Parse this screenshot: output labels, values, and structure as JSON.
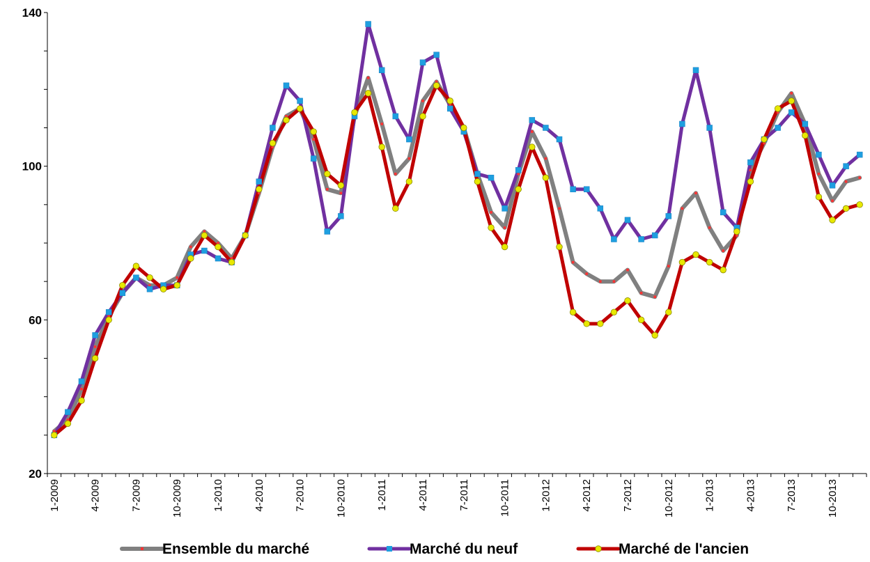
{
  "chart_data": {
    "type": "line",
    "title": "",
    "xlabel": "",
    "ylabel": "",
    "ylim": [
      20,
      140
    ],
    "yticks": [
      20,
      60,
      100,
      140
    ],
    "grid": false,
    "legend_position": "bottom",
    "x_tick_labels": [
      "1-2009",
      "4-2009",
      "7-2009",
      "10-2009",
      "1-2010",
      "4-2010",
      "7-2010",
      "10-2010",
      "1-2011",
      "4-2011",
      "7-2011",
      "10-2011",
      "1-2012",
      "4-2012",
      "7-2012",
      "10-2012",
      "1-2013",
      "4-2013",
      "7-2013",
      "10-2013"
    ],
    "x": [
      "1-2009",
      "2-2009",
      "3-2009",
      "4-2009",
      "5-2009",
      "6-2009",
      "7-2009",
      "8-2009",
      "9-2009",
      "10-2009",
      "11-2009",
      "12-2009",
      "1-2010",
      "2-2010",
      "3-2010",
      "4-2010",
      "5-2010",
      "6-2010",
      "7-2010",
      "8-2010",
      "9-2010",
      "10-2010",
      "11-2010",
      "12-2010",
      "1-2011",
      "2-2011",
      "3-2011",
      "4-2011",
      "5-2011",
      "6-2011",
      "7-2011",
      "8-2011",
      "9-2011",
      "10-2011",
      "11-2011",
      "12-2011",
      "1-2012",
      "2-2012",
      "3-2012",
      "4-2012",
      "5-2012",
      "6-2012",
      "7-2012",
      "8-2012",
      "9-2012",
      "10-2012",
      "11-2012",
      "12-2012",
      "1-2013",
      "2-2013",
      "3-2013",
      "4-2013",
      "5-2013",
      "6-2013",
      "7-2013",
      "8-2013",
      "9-2013",
      "10-2013",
      "11-2013",
      "12-2013"
    ],
    "series": [
      {
        "name": "Ensemble du marché",
        "color": "#808080",
        "marker_color": "#ff3333",
        "values": [
          31,
          34,
          42,
          53,
          61,
          67,
          71,
          69,
          69,
          71,
          79,
          83,
          80,
          76,
          82,
          93,
          105,
          113,
          115,
          107,
          94,
          93,
          113,
          123,
          111,
          98,
          102,
          117,
          122,
          116,
          110,
          98,
          88,
          84,
          98,
          109,
          102,
          89,
          75,
          72,
          70,
          70,
          73,
          67,
          66,
          74,
          89,
          93,
          84,
          78,
          82,
          99,
          106,
          114,
          119,
          111,
          98,
          91,
          96,
          97
        ]
      },
      {
        "name": "Marché du neuf",
        "color": "#7030a0",
        "marker_color": "#1e9fe0",
        "values": [
          30,
          36,
          44,
          56,
          62,
          67,
          71,
          68,
          69,
          69,
          77,
          78,
          76,
          75,
          82,
          96,
          110,
          121,
          117,
          102,
          83,
          87,
          113,
          137,
          125,
          113,
          107,
          127,
          129,
          115,
          109,
          98,
          97,
          89,
          99,
          112,
          110,
          107,
          94,
          94,
          89,
          81,
          86,
          81,
          82,
          87,
          111,
          125,
          110,
          88,
          84,
          101,
          107,
          110,
          114,
          111,
          103,
          95,
          100,
          103
        ]
      },
      {
        "name": "Marché de l'ancien",
        "color": "#c00000",
        "marker_color": "#e8e800",
        "values": [
          30,
          33,
          39,
          50,
          60,
          69,
          74,
          71,
          68,
          69,
          76,
          82,
          79,
          75,
          82,
          94,
          106,
          112,
          115,
          109,
          98,
          95,
          114,
          119,
          105,
          89,
          96,
          113,
          121,
          117,
          110,
          96,
          84,
          79,
          94,
          105,
          97,
          79,
          62,
          59,
          59,
          62,
          65,
          60,
          56,
          62,
          75,
          77,
          75,
          73,
          83,
          96,
          107,
          115,
          117,
          108,
          92,
          86,
          89,
          90
        ]
      }
    ]
  }
}
